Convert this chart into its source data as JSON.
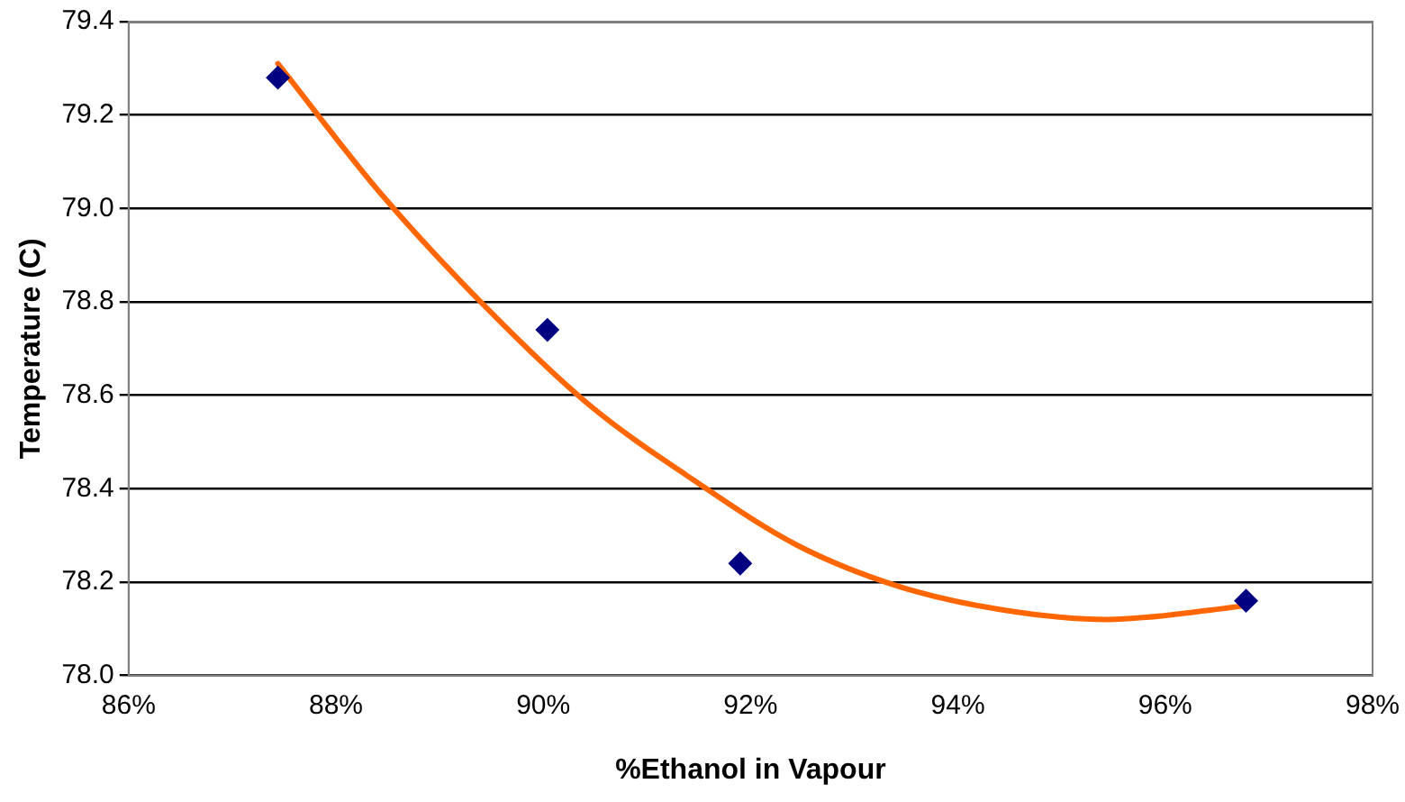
{
  "chart_data": {
    "type": "scatter",
    "xlabel": "%Ethanol in Vapour",
    "ylabel": "Temperature (C)",
    "xlim": [
      86,
      98
    ],
    "xticks": [
      {
        "value": 86,
        "label": "86%"
      },
      {
        "value": 88,
        "label": "88%"
      },
      {
        "value": 90,
        "label": "90%"
      },
      {
        "value": 92,
        "label": "92%"
      },
      {
        "value": 94,
        "label": "94%"
      },
      {
        "value": 96,
        "label": "96%"
      },
      {
        "value": 98,
        "label": "98%"
      }
    ],
    "ylim": [
      78.0,
      79.4
    ],
    "yticks": [
      {
        "value": 78,
        "label": "78.0"
      },
      {
        "value": 78.2,
        "label": "78.2"
      },
      {
        "value": 78.4,
        "label": "78.4"
      },
      {
        "value": 78.6,
        "label": "78.6"
      },
      {
        "value": 78.8,
        "label": "78.8"
      },
      {
        "value": 79,
        "label": "79.0"
      },
      {
        "value": 79.2,
        "label": "79.2"
      },
      {
        "value": 79.4,
        "label": "79.4"
      }
    ],
    "grid": "y",
    "legend": false,
    "marker": "diamond",
    "series": [
      {
        "type": "scatter",
        "color": "#000080",
        "x": [
          87.44,
          90.04,
          91.9,
          96.78
        ],
        "values": [
          79.28,
          78.74,
          78.24,
          78.16
        ]
      },
      {
        "type": "line",
        "color": "#ff6600",
        "marker": "none",
        "x": [
          87.44,
          88.44,
          89.44,
          90.44,
          91.44,
          92.44,
          93.44,
          94.44,
          95.44,
          96.44,
          96.78
        ],
        "values": [
          79.31,
          79.03,
          78.79,
          78.58,
          78.42,
          78.28,
          78.19,
          78.14,
          78.12,
          78.14,
          78.15
        ]
      }
    ]
  }
}
